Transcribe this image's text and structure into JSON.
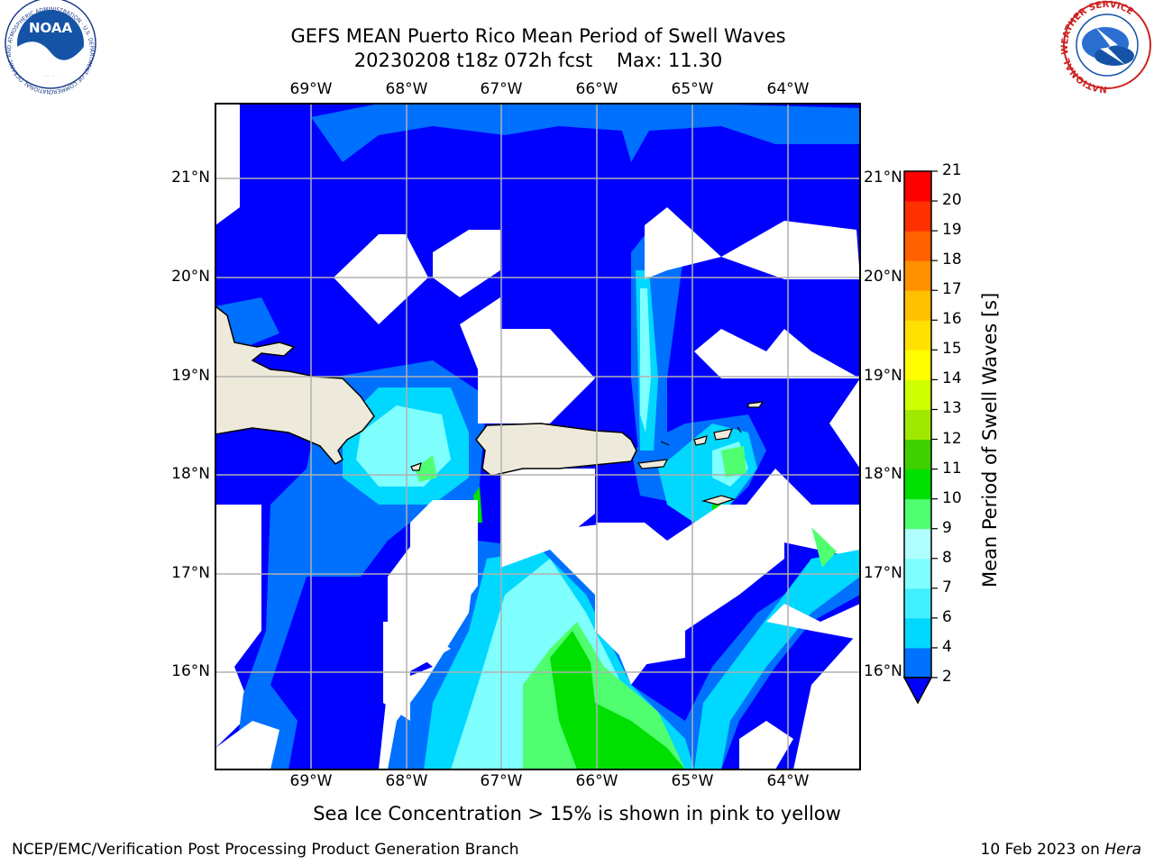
{
  "header": {
    "title_line1": "GEFS MEAN Puerto Rico Mean Period of Swell Waves",
    "title_line2": "20230208 t18z 072h fcst    Max: 11.30"
  },
  "logos": {
    "noaa_text": "NOAA",
    "noaa_ring_text": "NATIONAL OCEANIC AND ATMOSPHERIC ADMINISTRATION · U.S. DEPARTMENT OF COMMERCE",
    "nws_ring_text": "NATIONAL WEATHER SERVICE"
  },
  "map": {
    "lon_labels": [
      "69°W",
      "68°W",
      "67°W",
      "66°W",
      "65°W",
      "64°W"
    ],
    "lat_labels": [
      "21°N",
      "20°N",
      "19°N",
      "18°N",
      "17°N",
      "16°N"
    ],
    "land_color": "#eeeadb",
    "grid_color": "#b0b0b0"
  },
  "colorbar": {
    "label": "Mean Period of Swell Waves [s]",
    "ticks": [
      "2",
      "4",
      "6",
      "7",
      "8",
      "9",
      "10",
      "11",
      "12",
      "13",
      "14",
      "15",
      "16",
      "17",
      "18",
      "19",
      "20",
      "21"
    ],
    "colors": [
      "#0000ff",
      "#0070ff",
      "#00d8ff",
      "#40f0ff",
      "#80ffff",
      "#b0ffff",
      "#50ff70",
      "#00e000",
      "#40d000",
      "#a0e800",
      "#d0ff00",
      "#ffff00",
      "#ffe000",
      "#ffc000",
      "#ff9000",
      "#ff6000",
      "#ff3000",
      "#ff0000"
    ],
    "extend": "min"
  },
  "caption": "Sea Ice Concentration > 15% is shown in pink to yellow",
  "footer": {
    "left": "NCEP/EMC/Verification Post Processing Product Generation Branch",
    "right_prefix": "10 Feb 2023 on ",
    "right_machine": "Hera"
  }
}
